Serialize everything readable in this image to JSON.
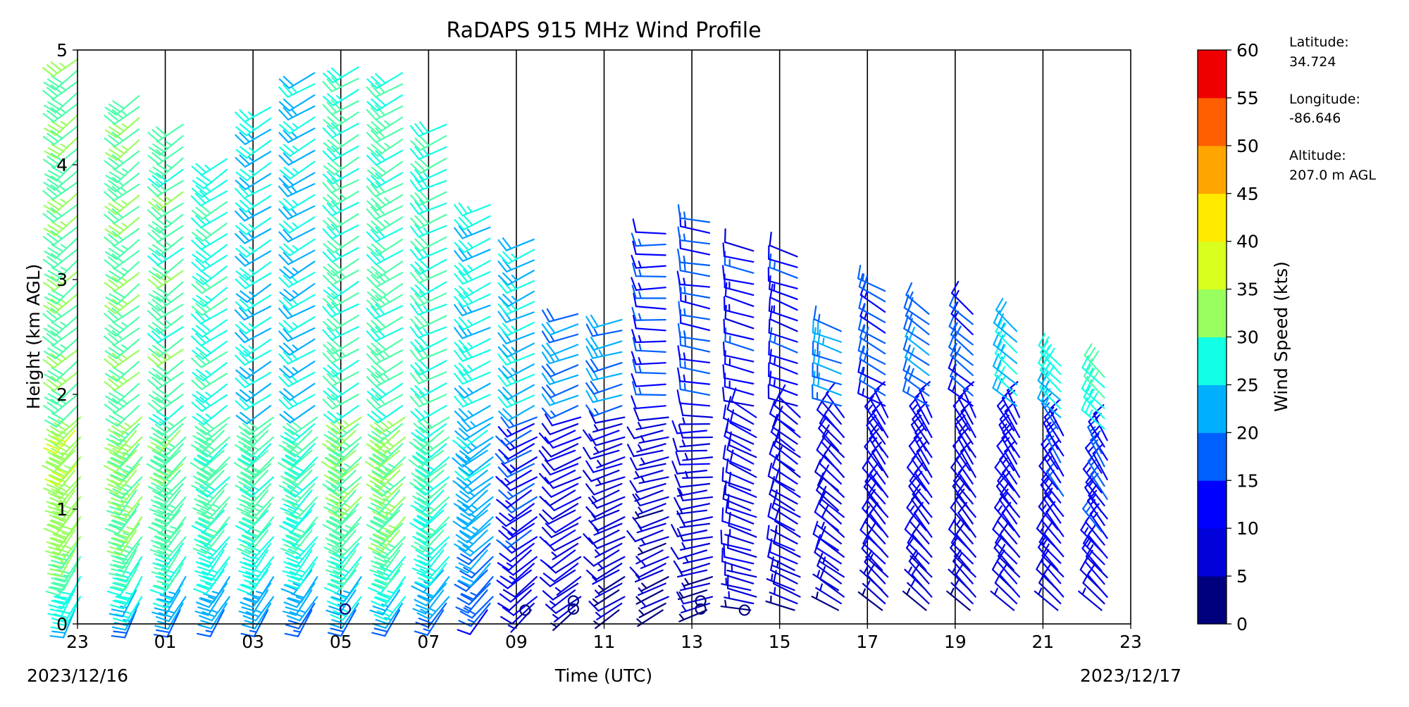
{
  "chart_data": {
    "type": "wind_barb_profile",
    "title": "RaDAPS 915 MHz Wind Profile",
    "xlabel": "Time (UTC)",
    "ylabel": "Height (km AGL)",
    "x_tick_labels": [
      "23",
      "01",
      "03",
      "05",
      "07",
      "09",
      "11",
      "13",
      "15",
      "17",
      "19",
      "21",
      "23"
    ],
    "y_tick_labels": [
      "0",
      "1",
      "2",
      "3",
      "4",
      "5"
    ],
    "ylim": [
      0,
      5
    ],
    "start_date": "2023/12/16",
    "end_date": "2023/12/17",
    "vertical_gridlines_hours": [
      1,
      3,
      5,
      7,
      9,
      11,
      13,
      15,
      17,
      19,
      21
    ],
    "colorbar": {
      "label": "Wind Speed (kts)",
      "ticks": [
        "0",
        "5",
        "10",
        "15",
        "20",
        "25",
        "30",
        "35",
        "40",
        "45",
        "50",
        "55",
        "60"
      ],
      "colors": [
        "#00007f",
        "#0000d8",
        "#0000ff",
        "#0060ff",
        "#00b0ff",
        "#12ffe5",
        "#4dffaa",
        "#99ff5e",
        "#d8ff1e",
        "#ffea00",
        "#ffa500",
        "#ff5f00",
        "#ef0000",
        "#7f0000"
      ]
    },
    "profiles": [
      {
        "hour": 23.0,
        "upper_top_km": 4.92,
        "upper_speed_kts": 33,
        "upper_dir_deg": 230,
        "lower_top_km": 1.8,
        "lower_speed_kts": 38,
        "lower_dir_deg": 215
      },
      {
        "hour": 0.4,
        "upper_top_km": 4.6,
        "upper_speed_kts": 33,
        "upper_dir_deg": 232,
        "lower_top_km": 1.8,
        "lower_speed_kts": 35,
        "lower_dir_deg": 215
      },
      {
        "hour": 1.4,
        "upper_top_km": 4.35,
        "upper_speed_kts": 32,
        "upper_dir_deg": 234,
        "lower_top_km": 1.8,
        "lower_speed_kts": 33,
        "lower_dir_deg": 218
      },
      {
        "hour": 2.4,
        "upper_top_km": 4.05,
        "upper_speed_kts": 28,
        "upper_dir_deg": 236,
        "lower_top_km": 1.8,
        "lower_speed_kts": 31,
        "lower_dir_deg": 220
      },
      {
        "hour": 3.4,
        "upper_top_km": 4.5,
        "upper_speed_kts": 25,
        "upper_dir_deg": 238,
        "lower_top_km": 1.8,
        "lower_speed_kts": 31,
        "lower_dir_deg": 220
      },
      {
        "hour": 4.4,
        "upper_top_km": 4.8,
        "upper_speed_kts": 24,
        "upper_dir_deg": 240,
        "lower_top_km": 1.8,
        "lower_speed_kts": 30,
        "lower_dir_deg": 220
      },
      {
        "hour": 5.4,
        "upper_top_km": 4.85,
        "upper_speed_kts": 30,
        "upper_dir_deg": 240,
        "lower_top_km": 1.8,
        "lower_speed_kts": 34,
        "lower_dir_deg": 222
      },
      {
        "hour": 6.4,
        "upper_top_km": 4.8,
        "upper_speed_kts": 31,
        "upper_dir_deg": 240,
        "lower_top_km": 1.8,
        "lower_speed_kts": 35,
        "lower_dir_deg": 222
      },
      {
        "hour": 7.4,
        "upper_top_km": 4.35,
        "upper_speed_kts": 29,
        "upper_dir_deg": 245,
        "lower_top_km": 1.8,
        "lower_speed_kts": 30,
        "lower_dir_deg": 225
      },
      {
        "hour": 8.4,
        "upper_top_km": 3.65,
        "upper_speed_kts": 26,
        "upper_dir_deg": 245,
        "lower_top_km": 1.8,
        "lower_speed_kts": 23,
        "lower_dir_deg": 228
      },
      {
        "hour": 9.4,
        "upper_top_km": 3.35,
        "upper_speed_kts": 24,
        "upper_dir_deg": 245,
        "lower_top_km": 1.8,
        "lower_speed_kts": 14,
        "lower_dir_deg": 235
      },
      {
        "hour": 10.4,
        "upper_top_km": 2.7,
        "upper_speed_kts": 20,
        "upper_dir_deg": 250,
        "lower_top_km": 1.8,
        "lower_speed_kts": 10,
        "lower_dir_deg": 240
      },
      {
        "hour": 11.4,
        "upper_top_km": 2.65,
        "upper_speed_kts": 20,
        "upper_dir_deg": 255,
        "lower_top_km": 1.8,
        "lower_speed_kts": 8,
        "lower_dir_deg": 245
      },
      {
        "hour": 12.4,
        "upper_top_km": 3.4,
        "upper_speed_kts": 14,
        "upper_dir_deg": 270,
        "lower_top_km": 1.8,
        "lower_speed_kts": 7,
        "lower_dir_deg": 250
      },
      {
        "hour": 13.4,
        "upper_top_km": 3.5,
        "upper_speed_kts": 15,
        "upper_dir_deg": 280,
        "lower_top_km": 1.8,
        "lower_speed_kts": 8,
        "lower_dir_deg": 260
      },
      {
        "hour": 14.4,
        "upper_top_km": 3.25,
        "upper_speed_kts": 12,
        "upper_dir_deg": 285,
        "lower_top_km": 1.8,
        "lower_speed_kts": 10,
        "lower_dir_deg": 290
      },
      {
        "hour": 15.4,
        "upper_top_km": 3.2,
        "upper_speed_kts": 12,
        "upper_dir_deg": 290,
        "lower_top_km": 1.8,
        "lower_speed_kts": 10,
        "lower_dir_deg": 300
      },
      {
        "hour": 16.4,
        "upper_top_km": 2.55,
        "upper_speed_kts": 20,
        "upper_dir_deg": 290,
        "lower_top_km": 1.8,
        "lower_speed_kts": 10,
        "lower_dir_deg": 310
      },
      {
        "hour": 17.4,
        "upper_top_km": 2.9,
        "upper_speed_kts": 16,
        "upper_dir_deg": 300,
        "lower_top_km": 1.8,
        "lower_speed_kts": 11,
        "lower_dir_deg": 320
      },
      {
        "hour": 18.4,
        "upper_top_km": 2.7,
        "upper_speed_kts": 18,
        "upper_dir_deg": 305,
        "lower_top_km": 1.8,
        "lower_speed_kts": 11,
        "lower_dir_deg": 322
      },
      {
        "hour": 19.4,
        "upper_top_km": 2.7,
        "upper_speed_kts": 16,
        "upper_dir_deg": 310,
        "lower_top_km": 1.8,
        "lower_speed_kts": 10,
        "lower_dir_deg": 322
      },
      {
        "hour": 20.4,
        "upper_top_km": 2.55,
        "upper_speed_kts": 24,
        "upper_dir_deg": 312,
        "lower_top_km": 1.8,
        "lower_speed_kts": 12,
        "lower_dir_deg": 322
      },
      {
        "hour": 21.4,
        "upper_top_km": 2.25,
        "upper_speed_kts": 26,
        "upper_dir_deg": 315,
        "lower_top_km": 1.7,
        "lower_speed_kts": 13,
        "lower_dir_deg": 322
      },
      {
        "hour": 22.4,
        "upper_top_km": 2.15,
        "upper_speed_kts": 28,
        "upper_dir_deg": 315,
        "lower_top_km": 1.6,
        "lower_speed_kts": 14,
        "lower_dir_deg": 322
      }
    ],
    "calm_markers": [
      {
        "hour": 5.1,
        "height_km": 0.13
      },
      {
        "hour": 9.2,
        "height_km": 0.12
      },
      {
        "hour": 10.3,
        "height_km": 0.13
      },
      {
        "hour": 10.3,
        "height_km": 0.2
      },
      {
        "hour": 13.2,
        "height_km": 0.13
      },
      {
        "hour": 13.2,
        "height_km": 0.2
      },
      {
        "hour": 14.2,
        "height_km": 0.12
      }
    ],
    "grid": "vertical lines at odd hours",
    "legend": "colorbar right"
  },
  "station_info": [
    {
      "label": "Latitude:",
      "value": "34.724"
    },
    {
      "label": "Longitude:",
      "value": "-86.646"
    },
    {
      "label": "Altitude:",
      "value": "207.0 m AGL"
    }
  ]
}
